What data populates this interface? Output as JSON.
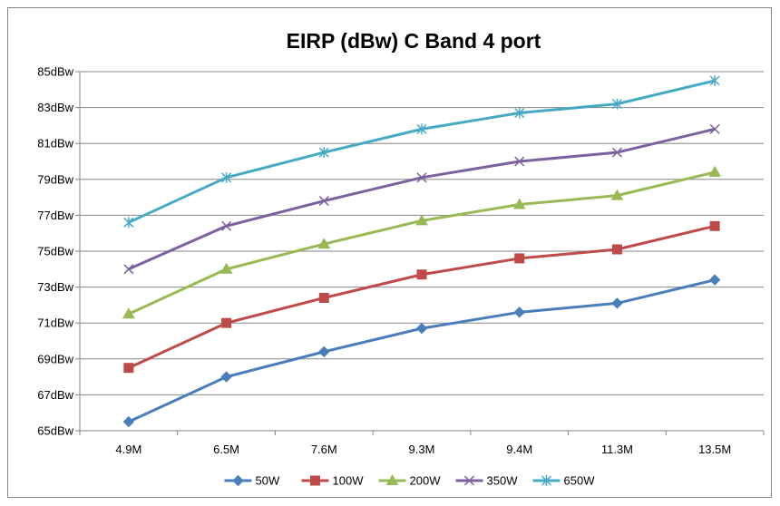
{
  "chart_data": {
    "type": "line",
    "title": "EIRP (dBw) C Band 4 port",
    "xlabel": "",
    "ylabel": "",
    "categories": [
      "4.9M",
      "6.5M",
      "7.6M",
      "9.3M",
      "9.4M",
      "11.3M",
      "13.5M"
    ],
    "y_ticks": [
      "65dBw",
      "67dBw",
      "69dBw",
      "71dBw",
      "73dBw",
      "75dBw",
      "77dBw",
      "79dBw",
      "81dBw",
      "83dBw",
      "85dBw"
    ],
    "ylim": [
      65,
      85
    ],
    "y_step": 2,
    "grid": true,
    "legend_position": "bottom",
    "series": [
      {
        "name": "50W",
        "color": "#4a7ebb",
        "marker": "diamond",
        "values": [
          65.5,
          68.0,
          69.4,
          70.7,
          71.6,
          72.1,
          73.4
        ]
      },
      {
        "name": "100W",
        "color": "#be4b48",
        "marker": "square",
        "values": [
          68.5,
          71.0,
          72.4,
          73.7,
          74.6,
          75.1,
          76.4
        ]
      },
      {
        "name": "200W",
        "color": "#98b954",
        "marker": "triangle",
        "values": [
          71.5,
          74.0,
          75.4,
          76.7,
          77.6,
          78.1,
          79.4
        ]
      },
      {
        "name": "350W",
        "color": "#7d60a0",
        "marker": "x",
        "values": [
          74.0,
          76.4,
          77.8,
          79.1,
          80.0,
          80.5,
          81.8
        ]
      },
      {
        "name": "650W",
        "color": "#46aac5",
        "marker": "star",
        "values": [
          76.6,
          79.1,
          80.5,
          81.8,
          82.7,
          83.2,
          84.5
        ]
      }
    ]
  }
}
